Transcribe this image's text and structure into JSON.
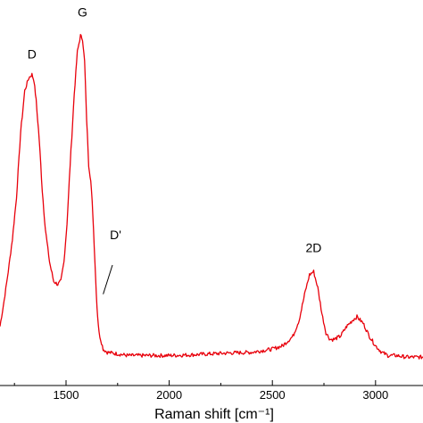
{
  "chart_data": {
    "type": "line",
    "xlabel": "Raman shift [cm⁻¹]",
    "xlim": [
      1180,
      3230
    ],
    "ylim": [
      0,
      1.0
    ],
    "xticks": [
      1500,
      2000,
      2500,
      3000
    ],
    "xtick_labels": [
      "1500",
      "2000",
      "2500",
      "3000"
    ],
    "grid": false,
    "line_color": "#e8000b",
    "series": [
      {
        "x": [
          1180,
          1200,
          1220,
          1240,
          1260,
          1280,
          1300,
          1320,
          1335,
          1345,
          1355,
          1370,
          1385,
          1400,
          1420,
          1440,
          1460,
          1475,
          1490,
          1505,
          1520,
          1540,
          1555,
          1570,
          1580,
          1590,
          1600,
          1610,
          1620,
          1630,
          1640,
          1650,
          1660,
          1680,
          1700,
          1750,
          1800,
          1900,
          2000,
          2100,
          2200,
          2300,
          2400,
          2500,
          2550,
          2600,
          2630,
          2660,
          2680,
          2700,
          2720,
          2740,
          2760,
          2780,
          2800,
          2830,
          2860,
          2890,
          2910,
          2940,
          2970,
          3000,
          3030,
          3060,
          3100,
          3150,
          3200,
          3230
        ],
        "y": [
          0.1,
          0.18,
          0.27,
          0.37,
          0.5,
          0.7,
          0.83,
          0.87,
          0.88,
          0.86,
          0.8,
          0.68,
          0.52,
          0.4,
          0.3,
          0.24,
          0.23,
          0.24,
          0.3,
          0.42,
          0.6,
          0.82,
          0.95,
          1.0,
          0.99,
          0.92,
          0.74,
          0.6,
          0.55,
          0.45,
          0.3,
          0.16,
          0.08,
          0.03,
          0.02,
          0.015,
          0.01,
          0.01,
          0.01,
          0.012,
          0.015,
          0.018,
          0.02,
          0.03,
          0.04,
          0.07,
          0.12,
          0.21,
          0.26,
          0.27,
          0.22,
          0.14,
          0.08,
          0.06,
          0.06,
          0.07,
          0.1,
          0.12,
          0.13,
          0.11,
          0.07,
          0.04,
          0.02,
          0.01,
          0.01,
          0.005,
          0.005,
          0.005
        ]
      }
    ],
    "annotations": [
      {
        "text": "D",
        "x": 1335,
        "y": 0.93
      },
      {
        "text": "G",
        "x": 1580,
        "y": 1.06
      },
      {
        "text": "D'",
        "x": 1740,
        "y": 0.37
      },
      {
        "text": "2D",
        "x": 2700,
        "y": 0.33
      }
    ],
    "dprime_marker": {
      "x1": 1680,
      "y1": 0.2,
      "x2": 1725,
      "y2": 0.29
    }
  }
}
